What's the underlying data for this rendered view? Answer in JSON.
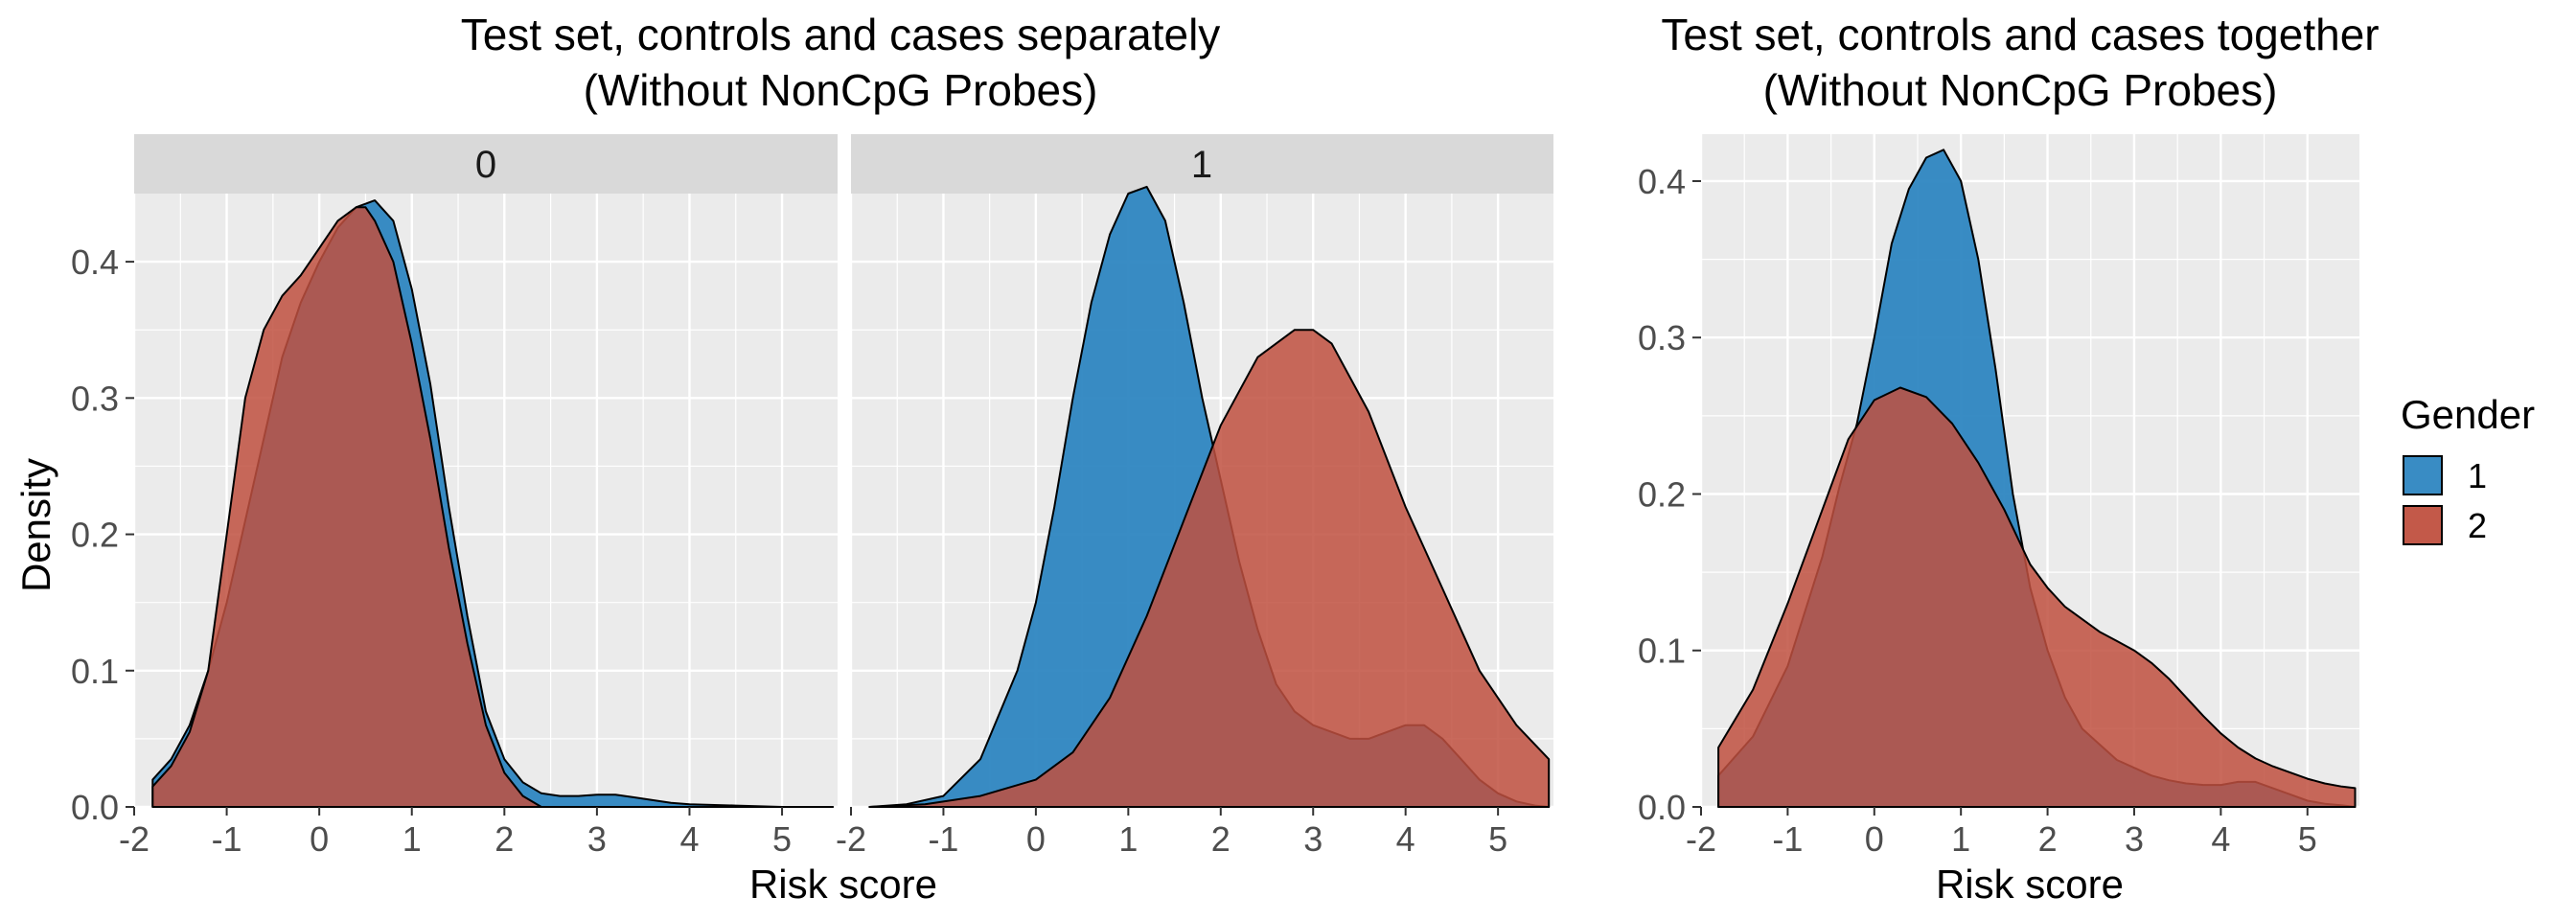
{
  "chart_data": [
    {
      "type": "area",
      "title": "Test set, controls and cases separately",
      "subtitle": "(Without NonCpG Probes)",
      "xlabel": "Risk score",
      "ylabel": "Density",
      "xlim": [
        -2,
        5.6
      ],
      "ylim": [
        0,
        0.45
      ],
      "x_ticks": [
        "-2",
        "-1",
        "0",
        "1",
        "2",
        "3",
        "4",
        "5"
      ],
      "y_ticks": [
        "0.0",
        "0.1",
        "0.2",
        "0.3",
        "0.4"
      ],
      "facets": [
        {
          "label": "0",
          "series": [
            {
              "name": "1",
              "x": [
                -1.8,
                -1.6,
                -1.4,
                -1.2,
                -1.0,
                -0.8,
                -0.6,
                -0.4,
                -0.2,
                0.0,
                0.2,
                0.4,
                0.6,
                0.8,
                1.0,
                1.2,
                1.4,
                1.6,
                1.8,
                2.0,
                2.2,
                2.4,
                2.6,
                2.8,
                3.0,
                3.2,
                3.4,
                3.6,
                3.8,
                4.0,
                4.5,
                5.0,
                5.55
              ],
              "values": [
                0.02,
                0.035,
                0.06,
                0.1,
                0.15,
                0.21,
                0.27,
                0.33,
                0.37,
                0.4,
                0.425,
                0.44,
                0.445,
                0.43,
                0.38,
                0.31,
                0.22,
                0.14,
                0.07,
                0.035,
                0.018,
                0.01,
                0.008,
                0.008,
                0.009,
                0.009,
                0.007,
                0.005,
                0.003,
                0.002,
                0.001,
                0.0,
                0.0
              ]
            },
            {
              "name": "2",
              "x": [
                -1.8,
                -1.6,
                -1.4,
                -1.2,
                -1.0,
                -0.8,
                -0.6,
                -0.4,
                -0.2,
                0.0,
                0.2,
                0.4,
                0.5,
                0.6,
                0.8,
                1.0,
                1.2,
                1.4,
                1.6,
                1.8,
                2.0,
                2.2,
                2.4
              ],
              "values": [
                0.015,
                0.03,
                0.055,
                0.1,
                0.2,
                0.3,
                0.35,
                0.375,
                0.39,
                0.41,
                0.43,
                0.44,
                0.44,
                0.43,
                0.4,
                0.34,
                0.27,
                0.19,
                0.12,
                0.06,
                0.025,
                0.008,
                0.0
              ]
            }
          ]
        },
        {
          "label": "1",
          "series": [
            {
              "name": "1",
              "x": [
                -1.8,
                -1.4,
                -1.0,
                -0.6,
                -0.2,
                0.0,
                0.2,
                0.4,
                0.6,
                0.8,
                1.0,
                1.2,
                1.4,
                1.6,
                1.8,
                2.0,
                2.2,
                2.4,
                2.6,
                2.8,
                3.0,
                3.2,
                3.4,
                3.6,
                3.8,
                4.0,
                4.2,
                4.4,
                4.6,
                4.8,
                5.0,
                5.2,
                5.4,
                5.55
              ],
              "values": [
                0.0,
                0.002,
                0.008,
                0.035,
                0.1,
                0.15,
                0.22,
                0.3,
                0.37,
                0.42,
                0.45,
                0.455,
                0.43,
                0.37,
                0.3,
                0.24,
                0.18,
                0.13,
                0.09,
                0.07,
                0.06,
                0.055,
                0.05,
                0.05,
                0.055,
                0.06,
                0.06,
                0.05,
                0.035,
                0.02,
                0.01,
                0.004,
                0.001,
                0.0
              ]
            },
            {
              "name": "2",
              "x": [
                -1.8,
                -1.2,
                -0.6,
                0.0,
                0.4,
                0.8,
                1.2,
                1.6,
                2.0,
                2.4,
                2.8,
                3.0,
                3.2,
                3.6,
                4.0,
                4.4,
                4.8,
                5.2,
                5.55
              ],
              "values": [
                0.0,
                0.002,
                0.008,
                0.02,
                0.04,
                0.08,
                0.14,
                0.21,
                0.28,
                0.33,
                0.35,
                0.35,
                0.34,
                0.29,
                0.22,
                0.16,
                0.1,
                0.06,
                0.035
              ]
            }
          ]
        }
      ]
    },
    {
      "type": "area",
      "title": "Test set, controls and cases together",
      "subtitle": "(Without NonCpG Probes)",
      "xlabel": "Risk score",
      "ylabel": "",
      "xlim": [
        -2,
        5.6
      ],
      "ylim": [
        0,
        0.43
      ],
      "x_ticks": [
        "-2",
        "-1",
        "0",
        "1",
        "2",
        "3",
        "4",
        "5"
      ],
      "y_ticks": [
        "0.0",
        "0.1",
        "0.2",
        "0.3",
        "0.4"
      ],
      "legend": {
        "title": "Gender",
        "position": "right",
        "entries": [
          "1",
          "2"
        ]
      },
      "series": [
        {
          "name": "1",
          "x": [
            -1.8,
            -1.4,
            -1.0,
            -0.6,
            -0.4,
            -0.2,
            0.0,
            0.2,
            0.4,
            0.6,
            0.8,
            1.0,
            1.2,
            1.4,
            1.6,
            1.8,
            2.0,
            2.2,
            2.4,
            2.6,
            2.8,
            3.0,
            3.2,
            3.4,
            3.6,
            3.8,
            4.0,
            4.2,
            4.4,
            4.6,
            4.8,
            5.0,
            5.2,
            5.4,
            5.55
          ],
          "values": [
            0.02,
            0.045,
            0.09,
            0.16,
            0.205,
            0.245,
            0.3,
            0.36,
            0.395,
            0.415,
            0.42,
            0.4,
            0.35,
            0.28,
            0.2,
            0.14,
            0.1,
            0.07,
            0.05,
            0.04,
            0.03,
            0.025,
            0.02,
            0.017,
            0.015,
            0.014,
            0.014,
            0.016,
            0.016,
            0.012,
            0.008,
            0.004,
            0.002,
            0.001,
            0.0
          ]
        },
        {
          "name": "2",
          "x": [
            -1.8,
            -1.4,
            -1.0,
            -0.6,
            -0.3,
            0.0,
            0.3,
            0.6,
            0.9,
            1.2,
            1.5,
            1.8,
            2.0,
            2.2,
            2.4,
            2.6,
            2.8,
            3.0,
            3.2,
            3.4,
            3.6,
            3.8,
            4.0,
            4.2,
            4.4,
            4.6,
            4.8,
            5.0,
            5.2,
            5.4,
            5.55
          ],
          "values": [
            0.038,
            0.075,
            0.13,
            0.19,
            0.235,
            0.26,
            0.268,
            0.262,
            0.245,
            0.22,
            0.19,
            0.155,
            0.14,
            0.128,
            0.12,
            0.112,
            0.106,
            0.1,
            0.092,
            0.082,
            0.07,
            0.058,
            0.047,
            0.038,
            0.031,
            0.026,
            0.022,
            0.018,
            0.015,
            0.013,
            0.012
          ]
        }
      ]
    }
  ],
  "colors": {
    "series_1": "#2E86C1",
    "series_2": "#C0503F",
    "panel": "#EBEBEB",
    "strip": "#D9D9D9",
    "grid": "#FFFFFF"
  }
}
